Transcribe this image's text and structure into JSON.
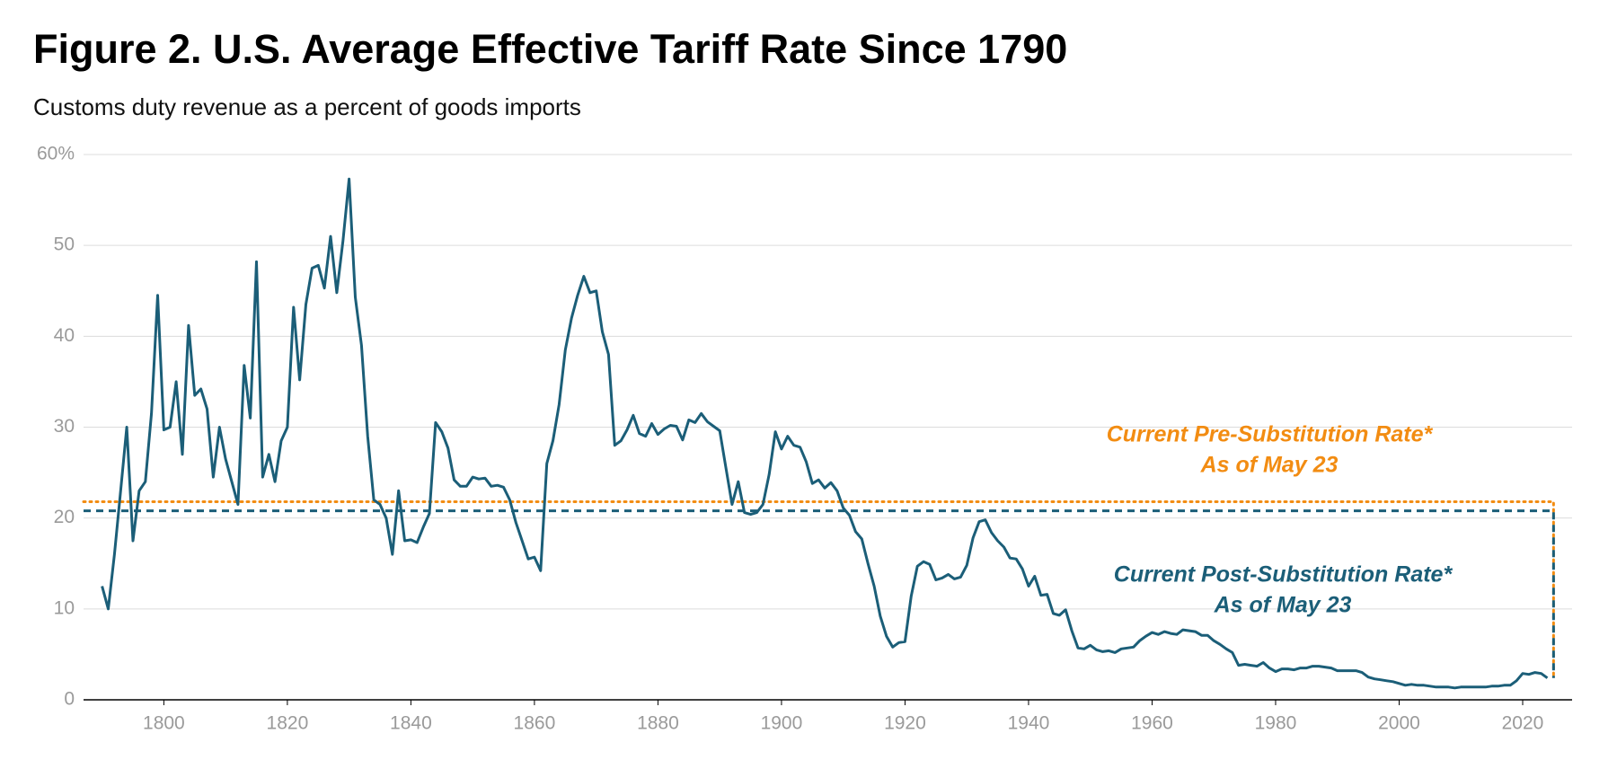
{
  "chart_data": {
    "type": "line",
    "title": "Figure 2. U.S. Average Effective Tariff Rate Since 1790",
    "subtitle": "Customs duty revenue as a percent of goods imports",
    "x": [
      1790,
      1791,
      1792,
      1793,
      1794,
      1795,
      1796,
      1797,
      1798,
      1799,
      1800,
      1801,
      1802,
      1803,
      1804,
      1805,
      1806,
      1807,
      1808,
      1809,
      1810,
      1811,
      1812,
      1813,
      1814,
      1815,
      1816,
      1817,
      1818,
      1819,
      1820,
      1821,
      1822,
      1823,
      1824,
      1825,
      1826,
      1827,
      1828,
      1829,
      1830,
      1831,
      1832,
      1833,
      1834,
      1835,
      1836,
      1837,
      1838,
      1839,
      1840,
      1841,
      1842,
      1843,
      1844,
      1845,
      1846,
      1847,
      1848,
      1849,
      1850,
      1851,
      1852,
      1853,
      1854,
      1855,
      1856,
      1857,
      1858,
      1859,
      1860,
      1861,
      1862,
      1863,
      1864,
      1865,
      1866,
      1867,
      1868,
      1869,
      1870,
      1871,
      1872,
      1873,
      1874,
      1875,
      1876,
      1877,
      1878,
      1879,
      1880,
      1881,
      1882,
      1883,
      1884,
      1885,
      1886,
      1887,
      1888,
      1889,
      1890,
      1891,
      1892,
      1893,
      1894,
      1895,
      1896,
      1897,
      1898,
      1899,
      1900,
      1901,
      1902,
      1903,
      1904,
      1905,
      1906,
      1907,
      1908,
      1909,
      1910,
      1911,
      1912,
      1913,
      1914,
      1915,
      1916,
      1917,
      1918,
      1919,
      1920,
      1921,
      1922,
      1923,
      1924,
      1925,
      1926,
      1927,
      1928,
      1929,
      1930,
      1931,
      1932,
      1933,
      1934,
      1935,
      1936,
      1937,
      1938,
      1939,
      1940,
      1941,
      1942,
      1943,
      1944,
      1945,
      1946,
      1947,
      1948,
      1949,
      1950,
      1951,
      1952,
      1953,
      1954,
      1955,
      1956,
      1957,
      1958,
      1959,
      1960,
      1961,
      1962,
      1963,
      1964,
      1965,
      1966,
      1967,
      1968,
      1969,
      1970,
      1971,
      1972,
      1973,
      1974,
      1975,
      1976,
      1977,
      1978,
      1979,
      1980,
      1981,
      1982,
      1983,
      1984,
      1985,
      1986,
      1987,
      1988,
      1989,
      1990,
      1991,
      1992,
      1993,
      1994,
      1995,
      1996,
      1997,
      1998,
      1999,
      2000,
      2001,
      2002,
      2003,
      2004,
      2005,
      2006,
      2007,
      2008,
      2009,
      2010,
      2011,
      2012,
      2013,
      2014,
      2015,
      2016,
      2017,
      2018,
      2019,
      2020,
      2021,
      2022,
      2023,
      2024
    ],
    "series": [
      {
        "color": "#1b5e78",
        "values": [
          12.5,
          10,
          16,
          23,
          30,
          17.5,
          23,
          24,
          31.5,
          44.5,
          29.7,
          30,
          35,
          27,
          41.2,
          33.5,
          34.2,
          32,
          24.5,
          30,
          26.5,
          24,
          21.5,
          36.8,
          31,
          48.2,
          24.5,
          27,
          24,
          28.5,
          30,
          43.2,
          35.2,
          43.5,
          47.5,
          47.8,
          45.3,
          51,
          44.8,
          50.5,
          57.3,
          44.3,
          39,
          29,
          22,
          21.5,
          20,
          16,
          23,
          17.5,
          17.6,
          17.3,
          19,
          20.5,
          30.5,
          29.5,
          27.7,
          24.2,
          23.5,
          23.5,
          24.5,
          24.3,
          24.4,
          23.5,
          23.6,
          23.4,
          22,
          19.5,
          17.5,
          15.5,
          15.7,
          14.2,
          26,
          28.5,
          32.5,
          38.5,
          42,
          44.5,
          46.6,
          44.8,
          45,
          40.5,
          38,
          28,
          28.5,
          29.7,
          31.3,
          29.3,
          29,
          30.4,
          29.2,
          29.8,
          30.2,
          30.1,
          28.6,
          30.8,
          30.5,
          31.5,
          30.6,
          30.1,
          29.6,
          25.5,
          21.5,
          24,
          20.6,
          20.4,
          20.6,
          21.5,
          24.8,
          29.5,
          27.6,
          29,
          28,
          27.8,
          26.2,
          23.8,
          24.2,
          23.3,
          23.9,
          23,
          21.1,
          20.3,
          18.5,
          17.7,
          15,
          12.5,
          9.2,
          7,
          5.8,
          6.3,
          6.4,
          11.4,
          14.7,
          15.2,
          14.9,
          13.2,
          13.4,
          13.8,
          13.3,
          13.5,
          14.8,
          17.8,
          19.6,
          19.8,
          18.4,
          17.5,
          16.8,
          15.6,
          15.5,
          14.4,
          12.5,
          13.6,
          11.5,
          11.6,
          9.5,
          9.3,
          9.9,
          7.6,
          5.7,
          5.6,
          6,
          5.5,
          5.3,
          5.4,
          5.2,
          5.6,
          5.7,
          5.8,
          6.5,
          7,
          7.4,
          7.2,
          7.5,
          7.3,
          7.2,
          7.7,
          7.6,
          7.5,
          7.1,
          7.1,
          6.5,
          6.1,
          5.6,
          5.2,
          3.8,
          3.9,
          3.8,
          3.7,
          4.1,
          3.5,
          3.1,
          3.4,
          3.4,
          3.3,
          3.5,
          3.5,
          3.7,
          3.7,
          3.6,
          3.5,
          3.2,
          3.2,
          3.2,
          3.2,
          3,
          2.5,
          2.3,
          2.2,
          2.1,
          2,
          1.8,
          1.6,
          1.7,
          1.6,
          1.6,
          1.5,
          1.4,
          1.4,
          1.4,
          1.3,
          1.4,
          1.4,
          1.4,
          1.4,
          1.4,
          1.5,
          1.5,
          1.6,
          1.6,
          2.1,
          2.9,
          2.8,
          3,
          2.9,
          2.4
        ]
      }
    ],
    "reference_lines": [
      {
        "label": [
          "Current Pre-Substitution Rate*",
          "As of May 23"
        ],
        "value": 21.8,
        "x_end": 2025,
        "color": "#f28c12",
        "style": "dotted"
      },
      {
        "label": [
          "Current Post-Substitution Rate*",
          "As of May 23"
        ],
        "value": 20.8,
        "x_end": 2025,
        "color": "#1b5e78",
        "style": "dashed"
      }
    ],
    "xlim": [
      1787,
      2028
    ],
    "xticks": [
      1800,
      1820,
      1840,
      1860,
      1880,
      1900,
      1920,
      1940,
      1960,
      1980,
      2000,
      2020
    ],
    "ylim": [
      0,
      60
    ],
    "yticks": [
      0,
      10,
      20,
      30,
      40,
      50,
      {
        "value": 60,
        "label": "60%"
      }
    ],
    "grid": true
  }
}
